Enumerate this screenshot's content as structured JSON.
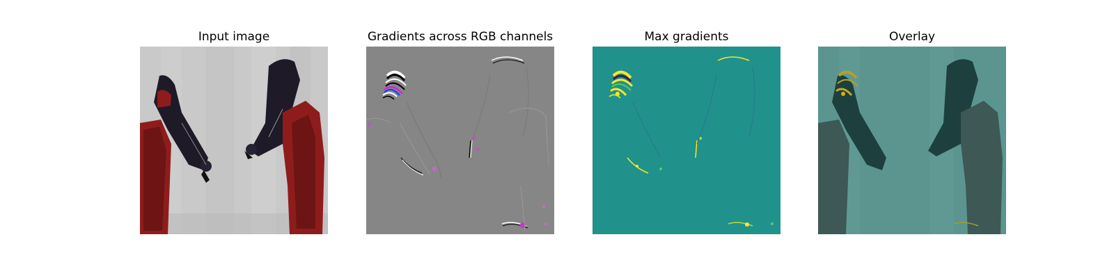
{
  "figure": {
    "panels": [
      {
        "title": "Input image"
      },
      {
        "title": "Gradients across RGB channels"
      },
      {
        "title": "Max gradients"
      },
      {
        "title": "Overlay"
      }
    ]
  },
  "colors": {
    "background": "#ffffff",
    "gradient_gray": "#868686",
    "viridis_base": "#21918c",
    "viridis_high": "#fde725",
    "overlay_tint": "#4d8f8a",
    "robot_red": "#8f1c1c",
    "robot_dark": "#1e1a28"
  }
}
